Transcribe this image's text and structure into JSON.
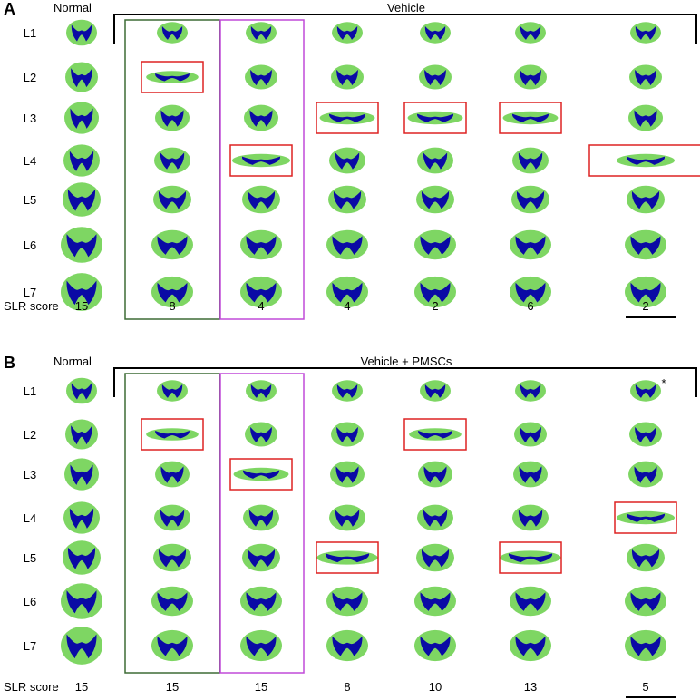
{
  "panels": [
    {
      "letter": "A",
      "normal_label": "Normal",
      "group_label": "Vehicle",
      "levels": [
        "L1",
        "L2",
        "L3",
        "L4",
        "L5",
        "L6",
        "L7"
      ],
      "score_label": "SLR score",
      "normal_score": "15",
      "animal_scores": [
        "8",
        "4",
        "4",
        "2",
        "6",
        "2"
      ],
      "red_boxes": [
        [
          1,
          2
        ],
        [
          2,
          4
        ],
        [
          3,
          3
        ],
        [
          4,
          3
        ],
        [
          5,
          3
        ],
        [
          6,
          4
        ]
      ],
      "green_column": 1,
      "magenta_column": 2,
      "asterisk": null
    },
    {
      "letter": "B",
      "normal_label": "Normal",
      "group_label": "Vehicle + PMSCs",
      "levels": [
        "L1",
        "L2",
        "L3",
        "L4",
        "L5",
        "L6",
        "L7"
      ],
      "score_label": "SLR score",
      "normal_score": "15",
      "animal_scores": [
        "15",
        "15",
        "8",
        "10",
        "13",
        "5"
      ],
      "red_boxes": [
        [
          1,
          2
        ],
        [
          2,
          3
        ],
        [
          3,
          5
        ],
        [
          4,
          2
        ],
        [
          5,
          5
        ],
        [
          6,
          4
        ]
      ],
      "green_column": 1,
      "magenta_column": 2,
      "asterisk": "*"
    }
  ],
  "colors": {
    "white_matter": "#7ed663",
    "gray_matter": "#0a0aa5",
    "red_box": "#dd2222",
    "green_box": "#3d6b35",
    "magenta_box": "#c04ad8",
    "bracket": "#000000"
  }
}
